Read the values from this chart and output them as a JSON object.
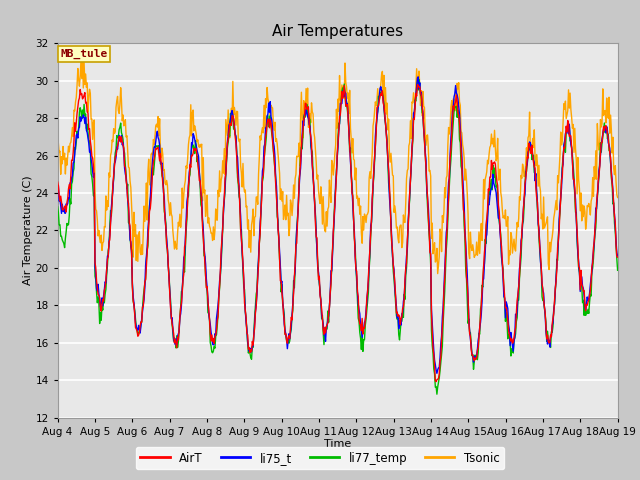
{
  "title": "Air Temperatures",
  "xlabel": "Time",
  "ylabel": "Air Temperature (C)",
  "ylim": [
    12,
    32
  ],
  "tick_labels": [
    "Aug 4",
    "Aug 5",
    "Aug 6",
    "Aug 7",
    "Aug 8",
    "Aug 9",
    "Aug 10",
    "Aug 11",
    "Aug 12",
    "Aug 13",
    "Aug 14",
    "Aug 15",
    "Aug 16",
    "Aug 17",
    "Aug 18",
    "Aug 19"
  ],
  "annotation_text": "MB_tule",
  "annotation_color": "#8B0000",
  "annotation_bg": "#FFFFC0",
  "annotation_border": "#C8A000",
  "colors": {
    "AirT": "#FF0000",
    "li75_t": "#0000FF",
    "li77_temp": "#00BB00",
    "Tsonic": "#FFA500"
  },
  "bg_color": "#E8E8E8",
  "grid_color": "#FFFFFF",
  "fig_bg": "#C8C8C8",
  "linewidth": 1.0,
  "title_fontsize": 11,
  "label_fontsize": 8,
  "tick_fontsize": 7.5
}
